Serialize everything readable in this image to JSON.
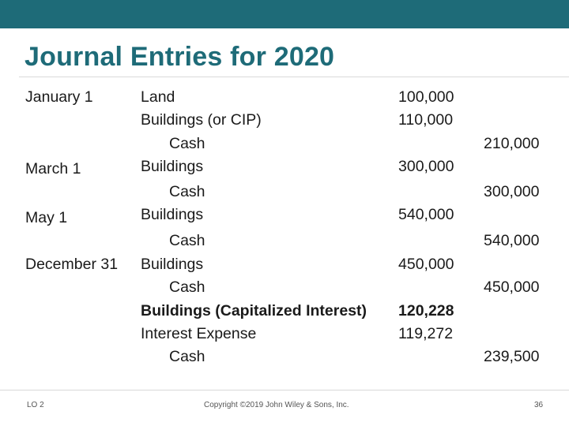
{
  "title": "Journal Entries for 2020",
  "dates": [
    "January 1",
    "March 1",
    "May 1",
    "December 31"
  ],
  "rows": [
    {
      "account": "Land",
      "debit": "100,000",
      "credit": ""
    },
    {
      "account": "Buildings (or CIP)",
      "debit": "110,000",
      "credit": ""
    },
    {
      "account": "Cash",
      "debit": "",
      "credit": "210,000"
    },
    {
      "account": "Buildings",
      "debit": "300,000",
      "credit": ""
    },
    {
      "account": "Cash",
      "debit": "",
      "credit": "300,000"
    },
    {
      "account": "Buildings",
      "debit": "540,000",
      "credit": ""
    },
    {
      "account": "Cash",
      "debit": "",
      "credit": "540,000"
    },
    {
      "account": "Buildings",
      "debit": "450,000",
      "credit": ""
    },
    {
      "account": "Cash",
      "debit": "",
      "credit": "450,000"
    },
    {
      "account": "Buildings (Capitalized Interest)",
      "debit": "120,228",
      "credit": ""
    },
    {
      "account": "Interest Expense",
      "debit": "119,272",
      "credit": ""
    },
    {
      "account": "Cash",
      "debit": "",
      "credit": "239,500"
    }
  ],
  "footer": {
    "lo": "LO 2",
    "copyright": "Copyright ©2019 John Wiley & Sons, Inc.",
    "page_number": "36"
  }
}
